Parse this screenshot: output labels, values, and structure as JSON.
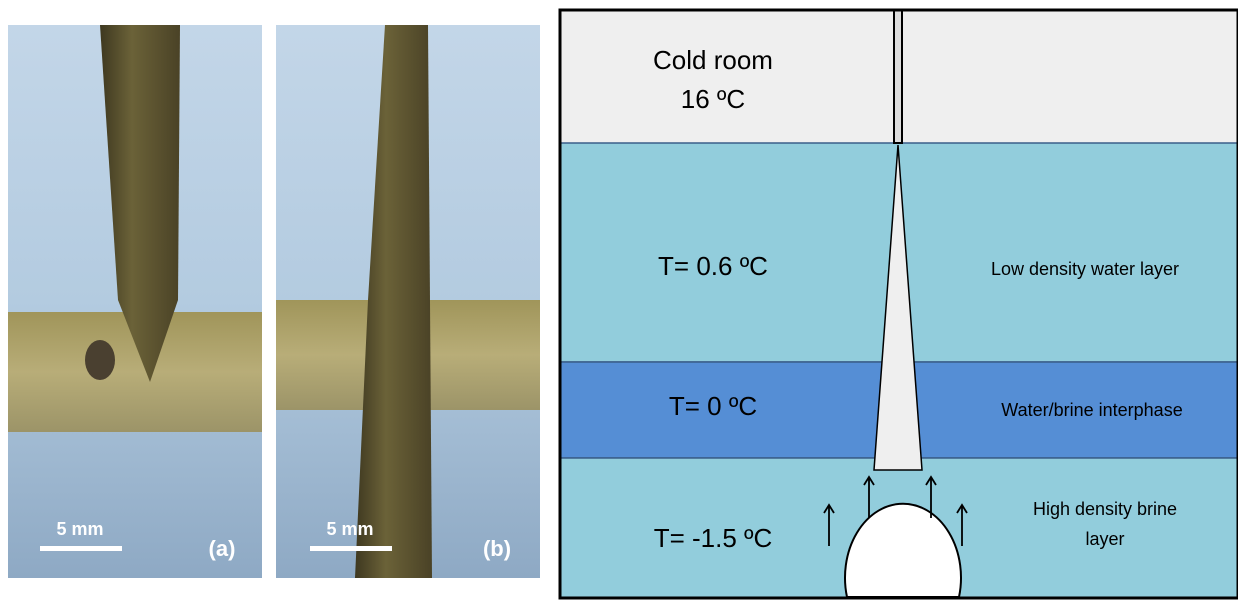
{
  "panels": [
    {
      "scale_label": "5 mm",
      "label": "(a)"
    },
    {
      "scale_label": "5 mm",
      "label": "(b)"
    }
  ],
  "diagram": {
    "cold_room": {
      "title": "Cold room",
      "temperature": "16 ºC"
    },
    "layers": [
      {
        "temperature": "T= 0.6 ºC",
        "description": "Low density water layer"
      },
      {
        "temperature": "T= 0 ºC",
        "description": "Water/brine interphase"
      },
      {
        "temperature": "T= -1.5 ºC",
        "description": [
          "High density brine",
          "layer"
        ]
      }
    ]
  }
}
